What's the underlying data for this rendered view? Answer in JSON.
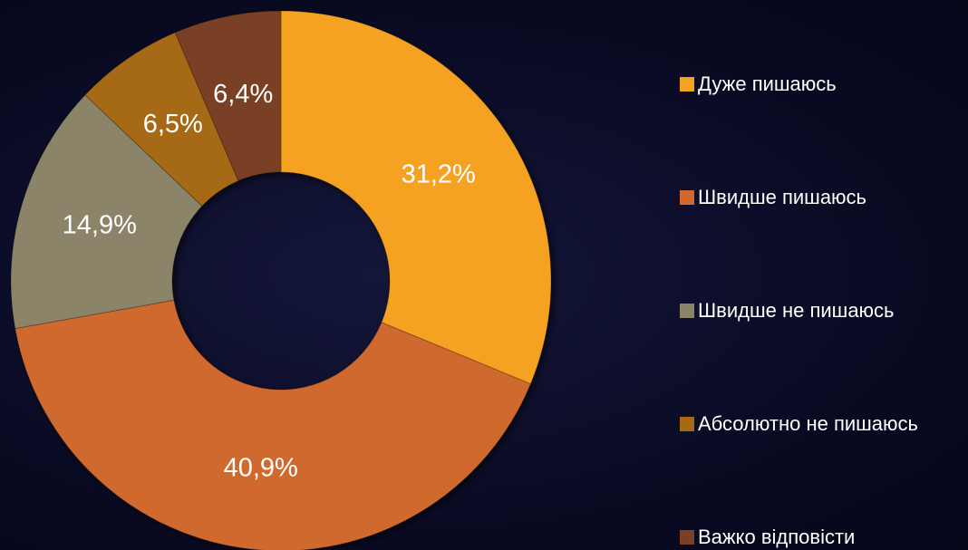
{
  "chart_data": {
    "type": "donut",
    "categories": [
      "Дуже пишаюсь",
      "Швидше пишаюсь",
      "Швидше не пишаюсь",
      "Абсолютно не пишаюсь",
      "Важко відповісти"
    ],
    "values": [
      31.2,
      40.9,
      14.9,
      6.5,
      6.4
    ],
    "value_labels": [
      "31,2%",
      "40,9%",
      "14,9%",
      "6,5%",
      "6,4%"
    ],
    "colors": [
      "#f5a223",
      "#d0692f",
      "#8b8468",
      "#a66a12",
      "#7a3f26"
    ],
    "legend": "right"
  }
}
